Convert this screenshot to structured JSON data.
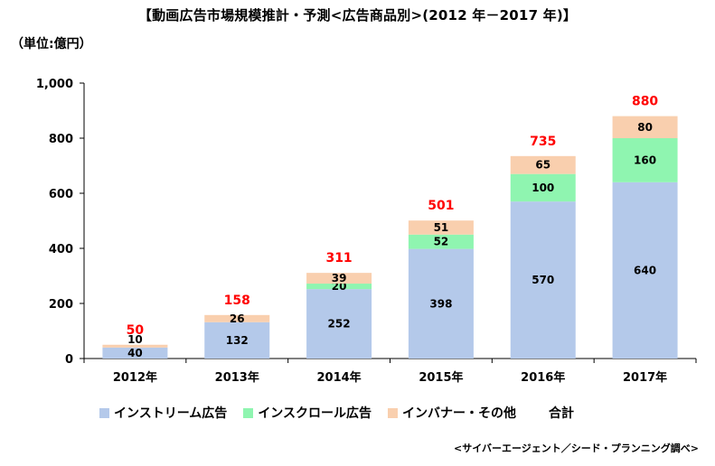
{
  "title": "【動画広告市場規模推計・予測<広告商品別>(2012 年－2017 年)】",
  "unit_label": "（単位:億円）",
  "source": "<サイバーエージェント／シード・プランニング調べ>",
  "colors": {
    "instream": "#b4c9ea",
    "inscroll": "#8ff5b0",
    "other": "#f9cfae",
    "total": "#ff0000",
    "axis": "#000000"
  },
  "legend": {
    "instream": "インストリーム広告",
    "inscroll": "インスクロール広告",
    "other": "インバナー・その他",
    "total": "合計"
  },
  "chart_data": {
    "type": "bar",
    "stacked": true,
    "categories": [
      "2012年",
      "2013年",
      "2014年",
      "2015年",
      "2016年",
      "2017年"
    ],
    "series": [
      {
        "name": "インストリーム広告",
        "key": "instream",
        "values": [
          40,
          132,
          252,
          398,
          570,
          640
        ]
      },
      {
        "name": "インスクロール広告",
        "key": "inscroll",
        "values": [
          0,
          0,
          20,
          52,
          100,
          160
        ]
      },
      {
        "name": "インバナー・その他",
        "key": "other",
        "values": [
          10,
          26,
          39,
          51,
          65,
          80
        ]
      }
    ],
    "segment_labels": [
      [
        "40",
        "",
        "10"
      ],
      [
        "132",
        "",
        "26"
      ],
      [
        "252",
        "20",
        "39"
      ],
      [
        "398",
        "52",
        "51"
      ],
      [
        "570",
        "100",
        "65"
      ],
      [
        "640",
        "160",
        "80"
      ]
    ],
    "totals": [
      50,
      158,
      311,
      501,
      735,
      880
    ],
    "ylim": [
      0,
      1000
    ],
    "yticks": [
      "0",
      "200",
      "400",
      "600",
      "800",
      "1,000"
    ],
    "ytick_values": [
      0,
      200,
      400,
      600,
      800,
      1000
    ],
    "grid": false,
    "legend_position": "bottom"
  }
}
